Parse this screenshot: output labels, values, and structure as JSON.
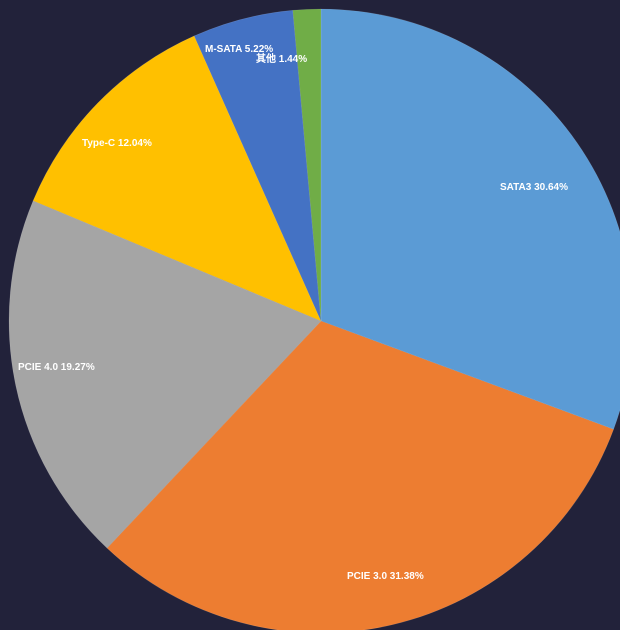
{
  "chart_data": {
    "type": "pie",
    "title": "",
    "start_angle_deg": 0,
    "direction": "clockwise",
    "background_color": "#22223a",
    "slices": [
      {
        "label": "SATA3",
        "value": 30.64,
        "display": "SATA3 30.64%",
        "color": "#5b9bd5"
      },
      {
        "label": "PCIE 3.0",
        "value": 31.38,
        "display": "PCIE 3.0 31.38%",
        "color": "#ed7d31"
      },
      {
        "label": "PCIE 4.0",
        "value": 19.27,
        "display": "PCIE 4.0 19.27%",
        "color": "#a5a5a5"
      },
      {
        "label": "Type-C",
        "value": 12.04,
        "display": "Type-C 12.04%",
        "color": "#ffc000"
      },
      {
        "label": "M-SATA",
        "value": 5.22,
        "display": "M-SATA 5.22%",
        "color": "#4472c4"
      },
      {
        "label": "其他",
        "value": 1.44,
        "display": "其他 1.44%",
        "color": "#70ad47"
      }
    ]
  }
}
